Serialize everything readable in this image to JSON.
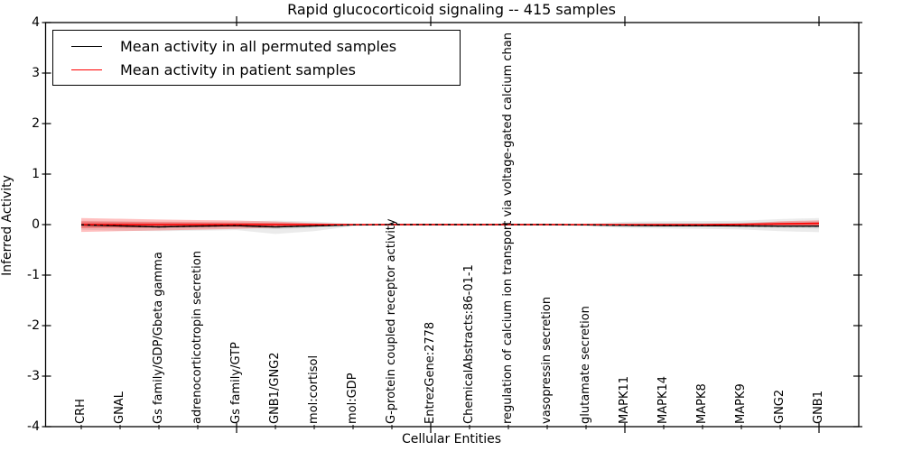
{
  "chart_data": {
    "type": "line",
    "title": "Rapid glucocorticoid signaling -- 415 samples",
    "xlabel": "Cellular Entities",
    "ylabel": "Inferred Activity",
    "ylim": [
      -4,
      4
    ],
    "yticks": [
      4,
      3,
      2,
      1,
      0,
      -1,
      -2,
      -3,
      -4
    ],
    "x_values": [
      1,
      2,
      3,
      4,
      5,
      6,
      7,
      8,
      9,
      10,
      11,
      12,
      13,
      14,
      15,
      16,
      17,
      18,
      19,
      20
    ],
    "x_major_ticks": [
      5,
      10,
      15,
      20
    ],
    "grid": false,
    "legend_position": "upper left",
    "categories": [
      "CRH",
      "GNAL",
      "Gs family/GDP/Gbeta gamma",
      "adrenocorticotropin secretion",
      "Gs family/GTP",
      "GNB1/GNG2",
      "mol:cortisol",
      "mol:GDP",
      "G-protein coupled receptor activity",
      "EntrezGene:2778",
      "ChemicalAbstracts:86-01-1",
      "regulation of calcium ion transport via voltage-gated calcium chan",
      "vasopressin secretion",
      "glutamate secretion",
      "MAPK11",
      "MAPK14",
      "MAPK8",
      "MAPK9",
      "GNG2",
      "GNB1"
    ],
    "series": [
      {
        "name": "Mean activity in all permuted samples",
        "color": "#000000",
        "band_color": "#888888",
        "values": [
          -0.005,
          -0.025,
          -0.045,
          -0.03,
          -0.02,
          -0.045,
          -0.025,
          -0.005,
          0,
          0,
          0,
          0,
          0,
          -0.005,
          -0.015,
          -0.02,
          -0.02,
          -0.025,
          -0.03,
          -0.03
        ],
        "band_outer": {
          "upper": [
            0.075,
            0.07,
            0.06,
            0.055,
            0.06,
            0.08,
            0.06,
            0.02,
            0.01,
            0.01,
            0.01,
            0.01,
            0.01,
            0.02,
            0.055,
            0.065,
            0.07,
            0.075,
            0.11,
            0.13
          ],
          "lower": [
            -0.1,
            -0.12,
            -0.13,
            -0.12,
            -0.11,
            -0.185,
            -0.13,
            -0.03,
            -0.01,
            -0.01,
            -0.01,
            -0.01,
            -0.01,
            -0.03,
            -0.065,
            -0.075,
            -0.085,
            -0.095,
            -0.13,
            -0.15
          ]
        },
        "band_inner": {
          "upper": [
            0.04,
            0.035,
            0.03,
            0.03,
            0.03,
            0.04,
            0.03,
            0.01,
            0.005,
            0.005,
            0.005,
            0.005,
            0.005,
            0.01,
            0.03,
            0.035,
            0.035,
            0.04,
            0.055,
            0.065
          ],
          "lower": [
            -0.05,
            -0.06,
            -0.065,
            -0.06,
            -0.055,
            -0.09,
            -0.065,
            -0.015,
            -0.005,
            -0.005,
            -0.005,
            -0.005,
            -0.005,
            -0.015,
            -0.035,
            -0.04,
            -0.045,
            -0.05,
            -0.065,
            -0.075
          ]
        }
      },
      {
        "name": "Mean activity in patient samples",
        "color": "#ff0000",
        "band_color": "#ff0000",
        "values": [
          0,
          0,
          0,
          0,
          0,
          0,
          0,
          0,
          0,
          0,
          0,
          0,
          0,
          0,
          0,
          0,
          0,
          0.005,
          0.015,
          0.025
        ],
        "band_outer": {
          "upper": [
            0.13,
            0.115,
            0.1,
            0.09,
            0.08,
            0.06,
            0.03,
            0.01,
            0.008,
            0.008,
            0.008,
            0.008,
            0.008,
            0.008,
            0.008,
            0.008,
            0.01,
            0.02,
            0.065,
            0.085
          ],
          "lower": [
            -0.145,
            -0.13,
            -0.115,
            -0.1,
            -0.085,
            -0.06,
            -0.03,
            -0.01,
            -0.008,
            -0.008,
            -0.008,
            -0.008,
            -0.008,
            -0.008,
            -0.008,
            -0.008,
            -0.01,
            -0.012,
            -0.02,
            -0.03
          ]
        },
        "band_inner": {
          "upper": [
            0.065,
            0.055,
            0.05,
            0.045,
            0.04,
            0.03,
            0.015,
            0.005,
            0.004,
            0.004,
            0.004,
            0.004,
            0.004,
            0.004,
            0.004,
            0.004,
            0.005,
            0.01,
            0.033,
            0.043
          ],
          "lower": [
            -0.07,
            -0.065,
            -0.055,
            -0.05,
            -0.042,
            -0.03,
            -0.015,
            -0.005,
            -0.004,
            -0.004,
            -0.004,
            -0.004,
            -0.004,
            -0.004,
            -0.004,
            -0.004,
            -0.005,
            -0.006,
            -0.01,
            -0.015
          ]
        }
      }
    ]
  }
}
